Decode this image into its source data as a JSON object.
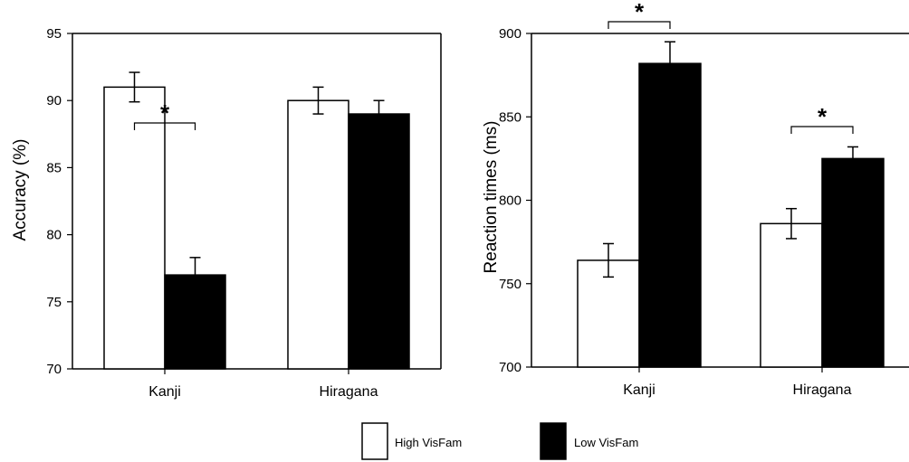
{
  "chart_data": [
    {
      "type": "bar",
      "ylabel": "Accuracy (%)",
      "categories": [
        "Kanji",
        "Hiragana"
      ],
      "ylim": [
        70,
        95
      ],
      "yticks": [
        70,
        75,
        80,
        85,
        90,
        95
      ],
      "series": [
        {
          "name": "High VisFam",
          "values": [
            91,
            90
          ],
          "errors": [
            1.1,
            1.0
          ]
        },
        {
          "name": "Low VisFam",
          "values": [
            77,
            89
          ],
          "errors": [
            1.3,
            1.0
          ]
        }
      ],
      "significance": [
        {
          "category": "Kanji",
          "label": "*"
        }
      ]
    },
    {
      "type": "bar",
      "ylabel": "Reaction times (ms)",
      "categories": [
        "Kanji",
        "Hiragana"
      ],
      "ylim": [
        700,
        900
      ],
      "yticks": [
        700,
        750,
        800,
        850,
        900
      ],
      "series": [
        {
          "name": "High VisFam",
          "values": [
            764,
            786
          ],
          "errors": [
            10,
            9
          ]
        },
        {
          "name": "Low VisFam",
          "values": [
            882,
            825
          ],
          "errors": [
            13,
            7
          ]
        }
      ],
      "significance": [
        {
          "category": "Kanji",
          "label": "*"
        },
        {
          "category": "Hiragana",
          "label": "*"
        }
      ]
    }
  ],
  "legend": {
    "items": [
      {
        "label": "High VisFam",
        "color": "#ffffff"
      },
      {
        "label": "Low VisFam",
        "color": "#000000"
      }
    ]
  },
  "colors": {
    "high": "#ffffff",
    "low": "#000000",
    "stroke": "#000000"
  }
}
